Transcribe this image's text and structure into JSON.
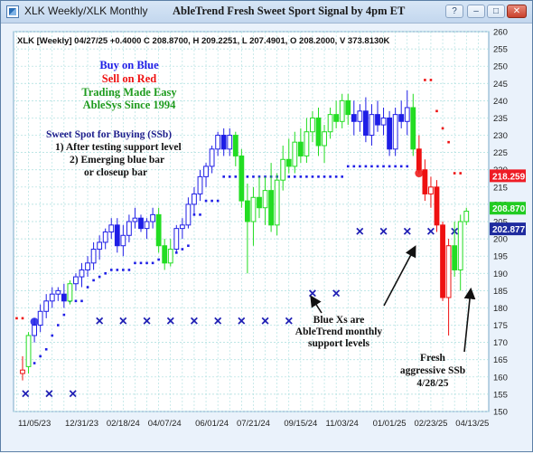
{
  "window": {
    "title": "XLK Weekly/XLK Monthly",
    "chart_heading": "AbleTrend Fresh Sweet Sport Signal by 4pm ET",
    "buttons": {
      "help": "?",
      "minimize": "–",
      "maximize": "□",
      "close": "✕"
    }
  },
  "chart_data": {
    "type": "candlestick",
    "title": "AbleTrend Fresh Sweet Sport Signal by 4pm ET",
    "info_line": "XLK [Weekly] 04/27/25 +0.4000 C 208.8700, H 209.2251, L 207.4901, O 208.2000, V 373.8130K",
    "ylim": [
      150,
      260
    ],
    "yticks": [
      150,
      155,
      160,
      165,
      170,
      175,
      180,
      185,
      190,
      195,
      200,
      205,
      210,
      215,
      220,
      225,
      230,
      235,
      240,
      245,
      250,
      255,
      260
    ],
    "xticks": [
      {
        "label": "11/05/23",
        "bar": 2
      },
      {
        "label": "12/31/23",
        "bar": 10
      },
      {
        "label": "02/18/24",
        "bar": 17
      },
      {
        "label": "04/07/24",
        "bar": 24
      },
      {
        "label": "06/01/24",
        "bar": 32
      },
      {
        "label": "07/21/24",
        "bar": 39
      },
      {
        "label": "09/15/24",
        "bar": 47
      },
      {
        "label": "11/03/24",
        "bar": 54
      },
      {
        "label": "01/01/25",
        "bar": 62
      },
      {
        "label": "02/23/25",
        "bar": 69
      },
      {
        "label": "04/13/25",
        "bar": 76
      }
    ],
    "grid": true,
    "bars": [
      {
        "o": 161,
        "h": 166,
        "l": 159,
        "c": 162,
        "s": "r"
      },
      {
        "o": 163,
        "h": 173,
        "l": 161,
        "c": 172,
        "s": "g"
      },
      {
        "o": 172,
        "h": 177,
        "l": 170,
        "c": 175,
        "s": "b"
      },
      {
        "o": 175,
        "h": 181,
        "l": 173,
        "c": 179,
        "s": "b"
      },
      {
        "o": 179,
        "h": 184,
        "l": 177,
        "c": 182,
        "s": "b"
      },
      {
        "o": 182,
        "h": 186,
        "l": 180,
        "c": 184,
        "s": "b"
      },
      {
        "o": 184,
        "h": 186,
        "l": 182,
        "c": 185,
        "s": "b"
      },
      {
        "o": 184,
        "h": 187,
        "l": 180,
        "c": 182,
        "s": "b"
      },
      {
        "o": 182,
        "h": 188,
        "l": 181,
        "c": 187,
        "s": "g"
      },
      {
        "o": 187,
        "h": 190,
        "l": 185,
        "c": 189,
        "s": "b"
      },
      {
        "o": 189,
        "h": 193,
        "l": 186,
        "c": 191,
        "s": "b"
      },
      {
        "o": 191,
        "h": 195,
        "l": 189,
        "c": 193,
        "s": "b"
      },
      {
        "o": 193,
        "h": 199,
        "l": 191,
        "c": 197,
        "s": "b"
      },
      {
        "o": 197,
        "h": 201,
        "l": 194,
        "c": 199,
        "s": "b"
      },
      {
        "o": 199,
        "h": 203,
        "l": 197,
        "c": 202,
        "s": "b"
      },
      {
        "o": 202,
        "h": 206,
        "l": 200,
        "c": 204,
        "s": "b"
      },
      {
        "o": 204,
        "h": 206,
        "l": 196,
        "c": 198,
        "s": "b"
      },
      {
        "o": 198,
        "h": 204,
        "l": 195,
        "c": 201,
        "s": "b"
      },
      {
        "o": 201,
        "h": 207,
        "l": 199,
        "c": 205,
        "s": "b"
      },
      {
        "o": 205,
        "h": 209,
        "l": 203,
        "c": 206,
        "s": "b"
      },
      {
        "o": 206,
        "h": 207,
        "l": 202,
        "c": 203,
        "s": "b"
      },
      {
        "o": 203,
        "h": 206,
        "l": 200,
        "c": 205,
        "s": "b"
      },
      {
        "o": 205,
        "h": 209,
        "l": 203,
        "c": 207,
        "s": "b"
      },
      {
        "o": 207,
        "h": 209,
        "l": 196,
        "c": 198,
        "s": "g"
      },
      {
        "o": 198,
        "h": 200,
        "l": 191,
        "c": 193,
        "s": "g"
      },
      {
        "o": 193,
        "h": 200,
        "l": 192,
        "c": 197,
        "s": "g"
      },
      {
        "o": 197,
        "h": 204,
        "l": 196,
        "c": 203,
        "s": "b"
      },
      {
        "o": 203,
        "h": 206,
        "l": 200,
        "c": 204,
        "s": "b"
      },
      {
        "o": 204,
        "h": 212,
        "l": 203,
        "c": 210,
        "s": "b"
      },
      {
        "o": 210,
        "h": 215,
        "l": 207,
        "c": 213,
        "s": "b"
      },
      {
        "o": 213,
        "h": 220,
        "l": 211,
        "c": 218,
        "s": "b"
      },
      {
        "o": 218,
        "h": 222,
        "l": 215,
        "c": 221,
        "s": "b"
      },
      {
        "o": 221,
        "h": 227,
        "l": 219,
        "c": 226,
        "s": "b"
      },
      {
        "o": 226,
        "h": 231,
        "l": 224,
        "c": 230,
        "s": "b"
      },
      {
        "o": 230,
        "h": 232,
        "l": 224,
        "c": 226,
        "s": "b"
      },
      {
        "o": 226,
        "h": 232,
        "l": 224,
        "c": 230,
        "s": "b"
      },
      {
        "o": 230,
        "h": 231,
        "l": 221,
        "c": 224,
        "s": "g"
      },
      {
        "o": 224,
        "h": 226,
        "l": 209,
        "c": 211,
        "s": "g"
      },
      {
        "o": 211,
        "h": 216,
        "l": 190,
        "c": 205,
        "s": "g"
      },
      {
        "o": 205,
        "h": 215,
        "l": 198,
        "c": 212,
        "s": "g"
      },
      {
        "o": 212,
        "h": 218,
        "l": 206,
        "c": 209,
        "s": "g"
      },
      {
        "o": 209,
        "h": 218,
        "l": 204,
        "c": 214,
        "s": "g"
      },
      {
        "o": 214,
        "h": 222,
        "l": 202,
        "c": 204,
        "s": "g"
      },
      {
        "o": 204,
        "h": 219,
        "l": 201,
        "c": 217,
        "s": "g"
      },
      {
        "o": 217,
        "h": 227,
        "l": 214,
        "c": 223,
        "s": "g"
      },
      {
        "o": 223,
        "h": 229,
        "l": 219,
        "c": 221,
        "s": "g"
      },
      {
        "o": 221,
        "h": 231,
        "l": 219,
        "c": 228,
        "s": "g"
      },
      {
        "o": 228,
        "h": 232,
        "l": 222,
        "c": 224,
        "s": "g"
      },
      {
        "o": 224,
        "h": 235,
        "l": 222,
        "c": 231,
        "s": "g"
      },
      {
        "o": 231,
        "h": 237,
        "l": 228,
        "c": 235,
        "s": "g"
      },
      {
        "o": 235,
        "h": 238,
        "l": 224,
        "c": 227,
        "s": "g"
      },
      {
        "o": 227,
        "h": 233,
        "l": 222,
        "c": 231,
        "s": "g"
      },
      {
        "o": 231,
        "h": 238,
        "l": 229,
        "c": 236,
        "s": "g"
      },
      {
        "o": 236,
        "h": 240,
        "l": 232,
        "c": 234,
        "s": "g"
      },
      {
        "o": 234,
        "h": 242,
        "l": 232,
        "c": 240,
        "s": "g"
      },
      {
        "o": 240,
        "h": 242,
        "l": 233,
        "c": 236,
        "s": "g"
      },
      {
        "o": 236,
        "h": 240,
        "l": 230,
        "c": 234,
        "s": "b"
      },
      {
        "o": 234,
        "h": 239,
        "l": 231,
        "c": 237,
        "s": "b"
      },
      {
        "o": 237,
        "h": 241,
        "l": 228,
        "c": 230,
        "s": "b"
      },
      {
        "o": 230,
        "h": 239,
        "l": 227,
        "c": 236,
        "s": "b"
      },
      {
        "o": 236,
        "h": 240,
        "l": 231,
        "c": 233,
        "s": "b"
      },
      {
        "o": 233,
        "h": 238,
        "l": 230,
        "c": 235,
        "s": "b"
      },
      {
        "o": 235,
        "h": 237,
        "l": 224,
        "c": 226,
        "s": "b"
      },
      {
        "o": 226,
        "h": 238,
        "l": 224,
        "c": 236,
        "s": "b"
      },
      {
        "o": 236,
        "h": 240,
        "l": 232,
        "c": 234,
        "s": "b"
      },
      {
        "o": 234,
        "h": 243,
        "l": 230,
        "c": 238,
        "s": "b"
      },
      {
        "o": 238,
        "h": 242,
        "l": 224,
        "c": 226,
        "s": "g"
      },
      {
        "o": 226,
        "h": 230,
        "l": 219,
        "c": 220,
        "s": "r"
      },
      {
        "o": 220,
        "h": 223,
        "l": 211,
        "c": 213,
        "s": "r"
      },
      {
        "o": 213,
        "h": 218,
        "l": 209,
        "c": 215,
        "s": "r"
      },
      {
        "o": 215,
        "h": 217,
        "l": 202,
        "c": 204,
        "s": "r"
      },
      {
        "o": 204,
        "h": 205,
        "l": 182,
        "c": 183,
        "s": "r"
      },
      {
        "o": 183,
        "h": 200,
        "l": 172,
        "c": 198,
        "s": "r"
      },
      {
        "o": 198,
        "h": 205,
        "l": 189,
        "c": 191,
        "s": "g"
      },
      {
        "o": 191,
        "h": 207,
        "l": 185,
        "c": 205,
        "s": "g"
      },
      {
        "o": 205,
        "h": 209,
        "l": 204,
        "c": 208,
        "s": "g"
      }
    ],
    "trail_dots": [
      {
        "bar": -1,
        "y": 177,
        "s": "r"
      },
      {
        "bar": 0,
        "y": 177,
        "s": "r"
      },
      {
        "bar": 2,
        "y": 164,
        "s": "b"
      },
      {
        "bar": 3,
        "y": 166,
        "s": "b"
      },
      {
        "bar": 4,
        "y": 168,
        "s": "b"
      },
      {
        "bar": 5,
        "y": 172,
        "s": "b"
      },
      {
        "bar": 6,
        "y": 175,
        "s": "b"
      },
      {
        "bar": 7,
        "y": 178,
        "s": "b"
      },
      {
        "bar": 8,
        "y": 182,
        "s": "b"
      },
      {
        "bar": 9,
        "y": 182,
        "s": "b"
      },
      {
        "bar": 10,
        "y": 182,
        "s": "b"
      },
      {
        "bar": 11,
        "y": 186,
        "s": "b"
      },
      {
        "bar": 12,
        "y": 188,
        "s": "b"
      },
      {
        "bar": 13,
        "y": 189,
        "s": "b"
      },
      {
        "bar": 14,
        "y": 190,
        "s": "b"
      },
      {
        "bar": 15,
        "y": 191,
        "s": "b"
      },
      {
        "bar": 16,
        "y": 191,
        "s": "b"
      },
      {
        "bar": 17,
        "y": 191,
        "s": "b"
      },
      {
        "bar": 18,
        "y": 191,
        "s": "b"
      },
      {
        "bar": 19,
        "y": 193,
        "s": "b"
      },
      {
        "bar": 20,
        "y": 193,
        "s": "b"
      },
      {
        "bar": 21,
        "y": 193,
        "s": "b"
      },
      {
        "bar": 22,
        "y": 193,
        "s": "b"
      },
      {
        "bar": 23,
        "y": 194,
        "s": "b"
      },
      {
        "bar": 24,
        "y": 194,
        "s": "b"
      },
      {
        "bar": 25,
        "y": 194,
        "s": "b"
      },
      {
        "bar": 26,
        "y": 196,
        "s": "b"
      },
      {
        "bar": 27,
        "y": 197,
        "s": "b"
      },
      {
        "bar": 28,
        "y": 198,
        "s": "b"
      },
      {
        "bar": 29,
        "y": 207,
        "s": "b"
      },
      {
        "bar": 30,
        "y": 207,
        "s": "b"
      },
      {
        "bar": 31,
        "y": 211,
        "s": "b"
      },
      {
        "bar": 32,
        "y": 211,
        "s": "b"
      },
      {
        "bar": 33,
        "y": 211,
        "s": "b"
      },
      {
        "bar": 34,
        "y": 218,
        "s": "b"
      },
      {
        "bar": 35,
        "y": 218,
        "s": "b"
      },
      {
        "bar": 36,
        "y": 218,
        "s": "b"
      },
      {
        "bar": 37,
        "y": 218,
        "s": "b"
      },
      {
        "bar": 38,
        "y": 218,
        "s": "b"
      },
      {
        "bar": 39,
        "y": 218,
        "s": "b"
      },
      {
        "bar": 40,
        "y": 218,
        "s": "b"
      },
      {
        "bar": 41,
        "y": 218,
        "s": "b"
      },
      {
        "bar": 42,
        "y": 218,
        "s": "b"
      },
      {
        "bar": 43,
        "y": 218,
        "s": "b"
      },
      {
        "bar": 44,
        "y": 218,
        "s": "b"
      },
      {
        "bar": 45,
        "y": 218,
        "s": "b"
      },
      {
        "bar": 46,
        "y": 218,
        "s": "b"
      },
      {
        "bar": 47,
        "y": 218,
        "s": "b"
      },
      {
        "bar": 48,
        "y": 218,
        "s": "b"
      },
      {
        "bar": 49,
        "y": 218,
        "s": "b"
      },
      {
        "bar": 50,
        "y": 218,
        "s": "b"
      },
      {
        "bar": 51,
        "y": 218,
        "s": "b"
      },
      {
        "bar": 52,
        "y": 218,
        "s": "b"
      },
      {
        "bar": 53,
        "y": 218,
        "s": "b"
      },
      {
        "bar": 54,
        "y": 218,
        "s": "b"
      },
      {
        "bar": 55,
        "y": 221,
        "s": "b"
      },
      {
        "bar": 56,
        "y": 221,
        "s": "b"
      },
      {
        "bar": 57,
        "y": 221,
        "s": "b"
      },
      {
        "bar": 58,
        "y": 221,
        "s": "b"
      },
      {
        "bar": 59,
        "y": 221,
        "s": "b"
      },
      {
        "bar": 60,
        "y": 221,
        "s": "b"
      },
      {
        "bar": 61,
        "y": 221,
        "s": "b"
      },
      {
        "bar": 62,
        "y": 221,
        "s": "b"
      },
      {
        "bar": 63,
        "y": 221,
        "s": "b"
      },
      {
        "bar": 64,
        "y": 221,
        "s": "b"
      },
      {
        "bar": 65,
        "y": 221,
        "s": "b"
      },
      {
        "bar": 68,
        "y": 246,
        "s": "r"
      },
      {
        "bar": 69,
        "y": 246,
        "s": "r"
      },
      {
        "bar": 70,
        "y": 237,
        "s": "r"
      },
      {
        "bar": 71,
        "y": 232,
        "s": "r"
      },
      {
        "bar": 72,
        "y": 228,
        "s": "r"
      },
      {
        "bar": 73,
        "y": 219,
        "s": "r"
      },
      {
        "bar": 74,
        "y": 219,
        "s": "r"
      }
    ],
    "monthly_support_x": [
      {
        "bar": 0.5,
        "y": 155
      },
      {
        "bar": 4.5,
        "y": 155
      },
      {
        "bar": 8.5,
        "y": 155
      },
      {
        "bar": 13,
        "y": 176
      },
      {
        "bar": 17,
        "y": 176
      },
      {
        "bar": 21,
        "y": 176
      },
      {
        "bar": 25,
        "y": 176
      },
      {
        "bar": 29,
        "y": 176
      },
      {
        "bar": 33,
        "y": 176
      },
      {
        "bar": 37,
        "y": 176
      },
      {
        "bar": 41,
        "y": 176
      },
      {
        "bar": 45,
        "y": 176
      },
      {
        "bar": 49,
        "y": 184
      },
      {
        "bar": 53,
        "y": 184
      },
      {
        "bar": 57,
        "y": 202
      },
      {
        "bar": 61,
        "y": 202
      },
      {
        "bar": 65,
        "y": 202
      },
      {
        "bar": 69,
        "y": 202
      },
      {
        "bar": 73,
        "y": 202
      }
    ],
    "sweet_spot_markers": [
      {
        "bar": 2,
        "y": 176
      },
      {
        "bar": 67,
        "y": 219
      }
    ],
    "price_labels": [
      {
        "value": "218.259",
        "y": 218.259,
        "color": "#ee1c25"
      },
      {
        "value": "208.870",
        "y": 208.87,
        "color": "#22cc22"
      },
      {
        "value": "202.877",
        "y": 202.877,
        "color": "#1f2b9e"
      }
    ],
    "legend_text": [
      {
        "text": "Buy on Blue",
        "color": "#1e1ee6"
      },
      {
        "text": "Sell on Red",
        "color": "#ee1111"
      },
      {
        "text": "Trading Made Easy",
        "color": "#1e9b1e"
      },
      {
        "text": "AbleSys Since 1994",
        "color": "#1e9b1e"
      }
    ],
    "sweet_spot_text": [
      "Sweet Spot for Buying (SSb)",
      "1) After testing support level",
      "2) Emerging blue bar",
      "or closeup bar"
    ],
    "annotations": {
      "blue_x": [
        "Blue Xs are",
        "AbleTrend monthly",
        "support levels"
      ],
      "fresh": [
        "Fresh",
        "aggressive SSb",
        "4/28/25"
      ]
    },
    "colors": {
      "blue": "#1e1ee6",
      "green": "#22dd22",
      "red": "#ee1111",
      "grid": "#a8dede",
      "xmark": "#1f1fb4"
    }
  }
}
